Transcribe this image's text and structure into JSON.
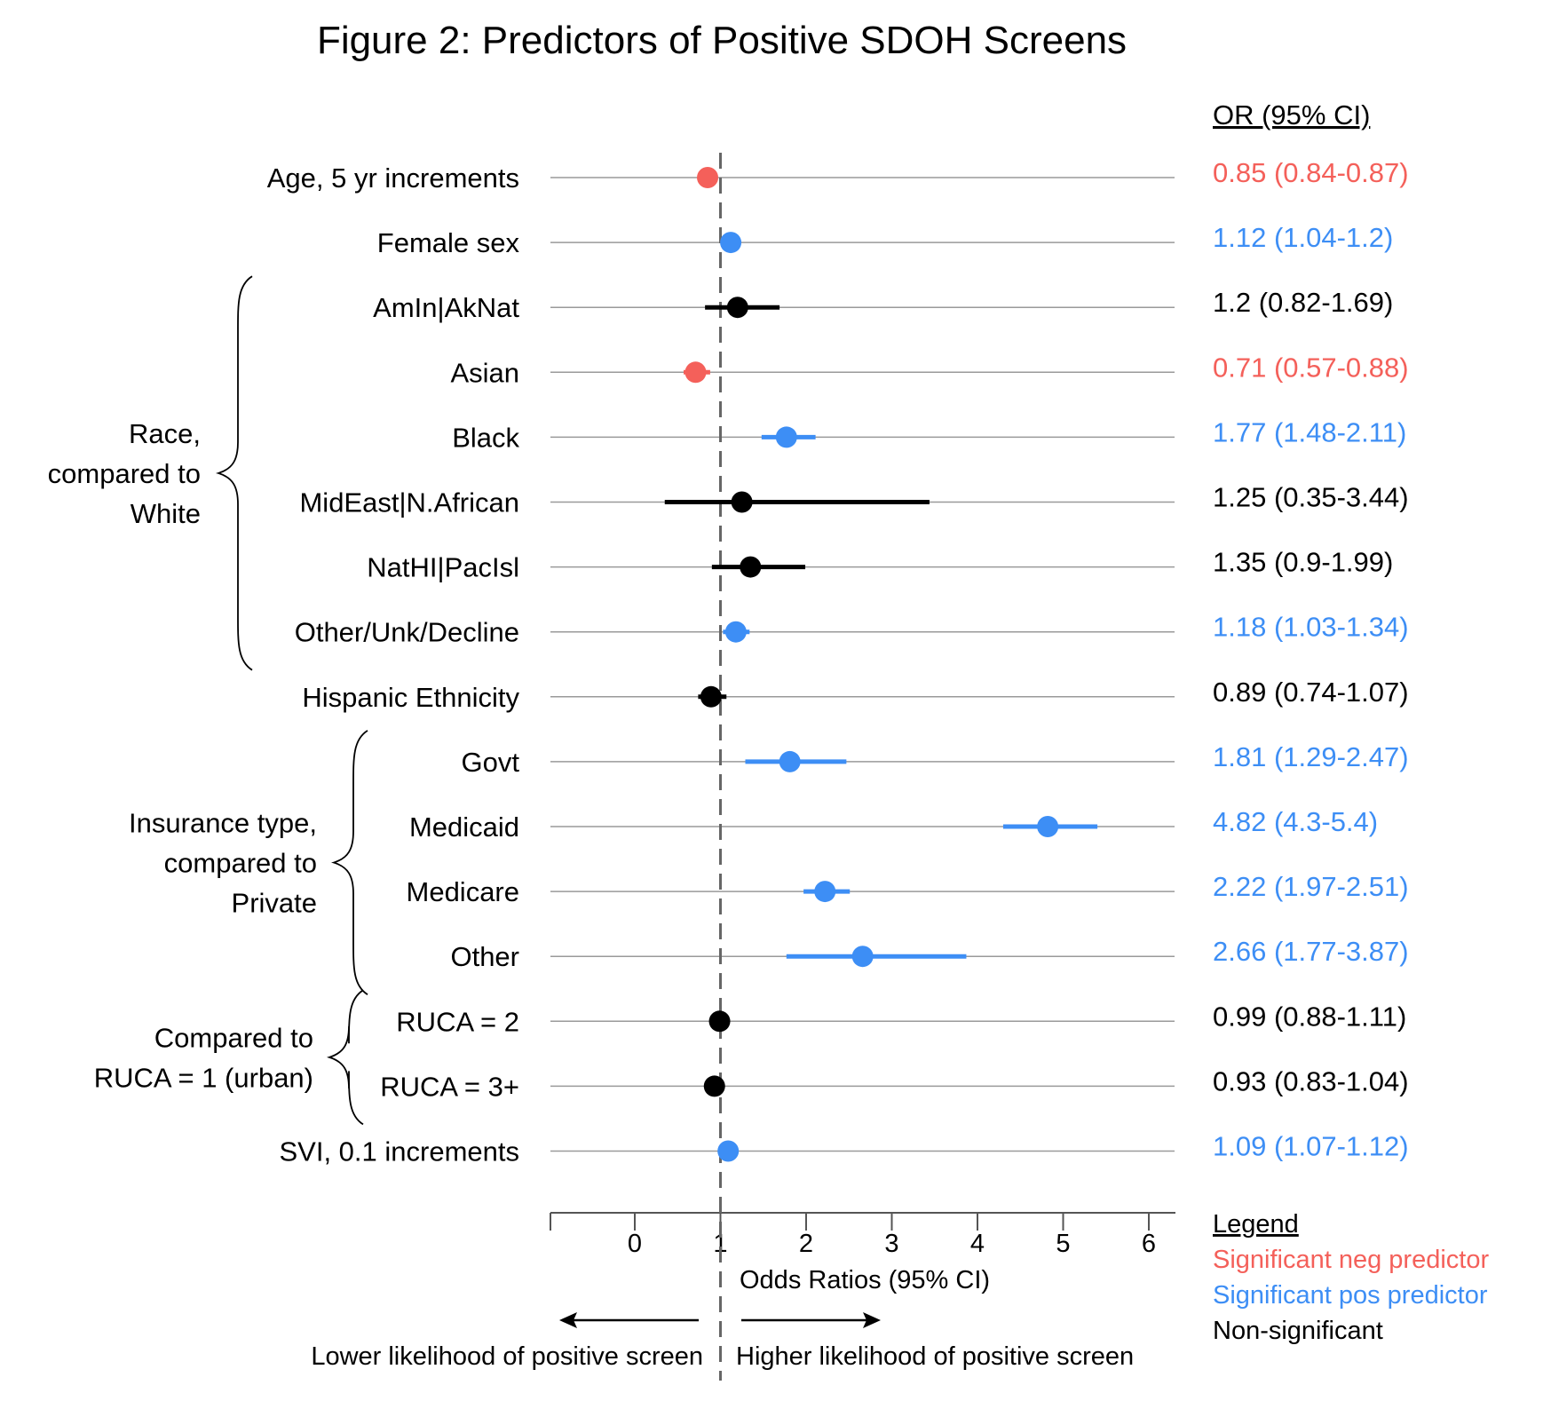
{
  "chart_data": {
    "type": "forest",
    "title": "Figure 2: Predictors of Positive SDOH Screens",
    "xlabel": "Odds Ratios (95% CI)",
    "xlim": [
      -1,
      6.35
    ],
    "x_ticks": [
      0,
      1,
      2,
      3,
      4,
      5,
      6
    ],
    "reference_line": 1,
    "or_header": "OR (95% CI)",
    "rows": [
      {
        "label": "Age, 5 yr increments",
        "or": 0.85,
        "lo": 0.84,
        "hi": 0.87,
        "sig": "neg",
        "text": "0.85 (0.84-0.87)"
      },
      {
        "label": "Female sex",
        "or": 1.12,
        "lo": 1.04,
        "hi": 1.2,
        "sig": "pos",
        "text": "1.12 (1.04-1.2)"
      },
      {
        "label": "AmIn|AkNat",
        "or": 1.2,
        "lo": 0.82,
        "hi": 1.69,
        "sig": "ns",
        "text": "1.2 (0.82-1.69)"
      },
      {
        "label": "Asian",
        "or": 0.71,
        "lo": 0.57,
        "hi": 0.88,
        "sig": "neg",
        "text": "0.71 (0.57-0.88)"
      },
      {
        "label": "Black",
        "or": 1.77,
        "lo": 1.48,
        "hi": 2.11,
        "sig": "pos",
        "text": "1.77 (1.48-2.11)"
      },
      {
        "label": "MidEast|N.African",
        "or": 1.25,
        "lo": 0.35,
        "hi": 3.44,
        "sig": "ns",
        "text": "1.25 (0.35-3.44)"
      },
      {
        "label": "NatHI|PacIsl",
        "or": 1.35,
        "lo": 0.9,
        "hi": 1.99,
        "sig": "ns",
        "text": "1.35 (0.9-1.99)"
      },
      {
        "label": "Other/Unk/Decline",
        "or": 1.18,
        "lo": 1.03,
        "hi": 1.34,
        "sig": "pos",
        "text": "1.18 (1.03-1.34)"
      },
      {
        "label": "Hispanic Ethnicity",
        "or": 0.89,
        "lo": 0.74,
        "hi": 1.07,
        "sig": "ns",
        "text": "0.89 (0.74-1.07)"
      },
      {
        "label": "Govt",
        "or": 1.81,
        "lo": 1.29,
        "hi": 2.47,
        "sig": "pos",
        "text": "1.81 (1.29-2.47)"
      },
      {
        "label": "Medicaid",
        "or": 4.82,
        "lo": 4.3,
        "hi": 5.4,
        "sig": "pos",
        "text": "4.82 (4.3-5.4)"
      },
      {
        "label": "Medicare",
        "or": 2.22,
        "lo": 1.97,
        "hi": 2.51,
        "sig": "pos",
        "text": "2.22 (1.97-2.51)"
      },
      {
        "label": "Other",
        "or": 2.66,
        "lo": 1.77,
        "hi": 3.87,
        "sig": "pos",
        "text": "2.66 (1.77-3.87)"
      },
      {
        "label": "RUCA = 2",
        "or": 0.99,
        "lo": 0.88,
        "hi": 1.11,
        "sig": "ns",
        "text": "0.99 (0.88-1.11)"
      },
      {
        "label": "RUCA = 3+",
        "or": 0.93,
        "lo": 0.83,
        "hi": 1.04,
        "sig": "ns",
        "text": "0.93 (0.83-1.04)"
      },
      {
        "label": "SVI, 0.1 increments",
        "or": 1.09,
        "lo": 1.07,
        "hi": 1.12,
        "sig": "pos",
        "text": "1.09 (1.07-1.12)"
      }
    ],
    "groups": [
      {
        "lines": [
          "Race,",
          "compared to",
          "White"
        ],
        "from": 2,
        "to": 7
      },
      {
        "lines": [
          "Insurance type,",
          "compared to",
          "Private"
        ],
        "from": 9,
        "to": 12
      },
      {
        "lines": [
          "Compared to",
          "RUCA = 1 (urban)"
        ],
        "from": 13,
        "to": 14
      }
    ],
    "direction_labels": {
      "lower": "Lower likelihood of positive screen",
      "higher": "Higher likelihood of positive screen"
    },
    "legend": {
      "title": "Legend",
      "items": [
        {
          "key": "neg",
          "label": "Significant neg predictor"
        },
        {
          "key": "pos",
          "label": "Significant pos predictor"
        },
        {
          "key": "ns",
          "label": "Non-significant"
        }
      ]
    },
    "colors": {
      "neg": "#f4605a",
      "pos": "#3d8ef5",
      "ns": "#000000",
      "grid": "#9a9a9a",
      "ref": "#666666"
    }
  }
}
